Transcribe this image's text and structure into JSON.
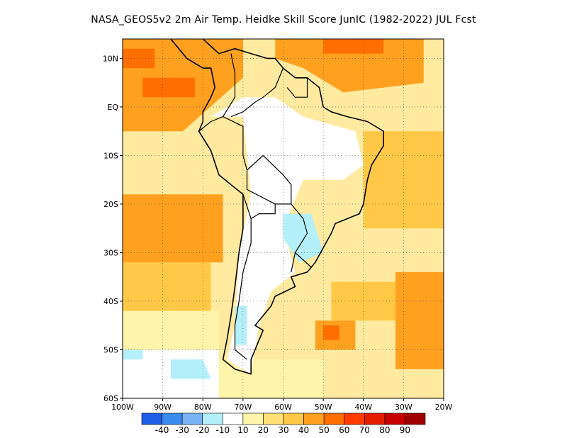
{
  "title": "NASA_GEOS5v2  2m Air Temp. Heidke Skill Score JunIC (1982-2022) JUL Fcst",
  "map": {
    "lon_range": [
      -100,
      -20
    ],
    "lat_range": [
      -60,
      14
    ],
    "grid": true,
    "background_color": "#ffeaa0",
    "lon_ticks": [
      {
        "value": -100,
        "label": "100W"
      },
      {
        "value": -90,
        "label": "90W"
      },
      {
        "value": -80,
        "label": "80W"
      },
      {
        "value": -70,
        "label": "70W"
      },
      {
        "value": -60,
        "label": "60W"
      },
      {
        "value": -50,
        "label": "50W"
      },
      {
        "value": -40,
        "label": "40W"
      },
      {
        "value": -30,
        "label": "30W"
      },
      {
        "value": -20,
        "label": "20W"
      }
    ],
    "lat_ticks": [
      {
        "value": 10,
        "label": "10N"
      },
      {
        "value": 0,
        "label": "EQ"
      },
      {
        "value": -10,
        "label": "10S"
      },
      {
        "value": -20,
        "label": "20S"
      },
      {
        "value": -30,
        "label": "30S"
      },
      {
        "value": -40,
        "label": "40S"
      },
      {
        "value": -50,
        "label": "50S"
      },
      {
        "value": -60,
        "label": "60S"
      }
    ]
  },
  "colorbar": {
    "colors": [
      "#1f5fe8",
      "#3c8cf0",
      "#78b4f5",
      "#b4f0fa",
      "#ffffff",
      "#fff5aa",
      "#ffe178",
      "#ffc846",
      "#ffa01e",
      "#ff6e00",
      "#ff3c00",
      "#e61e00",
      "#c80000",
      "#a00000"
    ],
    "labels": [
      "-40",
      "-30",
      "-20",
      "-10",
      "10",
      "20",
      "30",
      "40",
      "50",
      "60",
      "70",
      "80",
      "90"
    ]
  },
  "regions": [
    {
      "color": "#ffa01e",
      "points": [
        [
          -100,
          14
        ],
        [
          -70,
          14
        ],
        [
          -70,
          6
        ],
        [
          -85,
          -5
        ],
        [
          -100,
          -5
        ]
      ]
    },
    {
      "color": "#ffa01e",
      "points": [
        [
          -62,
          14
        ],
        [
          -25,
          14
        ],
        [
          -25,
          5
        ],
        [
          -45,
          3
        ],
        [
          -55,
          8
        ],
        [
          -62,
          10
        ]
      ]
    },
    {
      "color": "#ff6e00",
      "points": [
        [
          -100,
          12
        ],
        [
          -92,
          12
        ],
        [
          -92,
          8
        ],
        [
          -100,
          8
        ]
      ]
    },
    {
      "color": "#ff6e00",
      "points": [
        [
          -95,
          6
        ],
        [
          -82,
          6
        ],
        [
          -82,
          2
        ],
        [
          -95,
          2
        ]
      ]
    },
    {
      "color": "#ff6e00",
      "points": [
        [
          -50,
          14
        ],
        [
          -35,
          14
        ],
        [
          -35,
          11
        ],
        [
          -50,
          11
        ]
      ]
    },
    {
      "color": "#ffa01e",
      "points": [
        [
          -100,
          -18
        ],
        [
          -75,
          -18
        ],
        [
          -75,
          -32
        ],
        [
          -100,
          -32
        ]
      ]
    },
    {
      "color": "#ffc846",
      "points": [
        [
          -40,
          -5
        ],
        [
          -20,
          -5
        ],
        [
          -20,
          -25
        ],
        [
          -40,
          -25
        ]
      ]
    },
    {
      "color": "#ffc846",
      "points": [
        [
          -100,
          -32
        ],
        [
          -78,
          -32
        ],
        [
          -78,
          -42
        ],
        [
          -100,
          -42
        ]
      ]
    },
    {
      "color": "#ffa01e",
      "points": [
        [
          -52,
          -44
        ],
        [
          -42,
          -44
        ],
        [
          -42,
          -50
        ],
        [
          -52,
          -50
        ]
      ]
    },
    {
      "color": "#ff6e00",
      "points": [
        [
          -50,
          -45
        ],
        [
          -46,
          -45
        ],
        [
          -46,
          -48
        ],
        [
          -50,
          -48
        ]
      ]
    },
    {
      "color": "#ffa01e",
      "points": [
        [
          -32,
          -34
        ],
        [
          -20,
          -34
        ],
        [
          -20,
          -54
        ],
        [
          -32,
          -54
        ]
      ]
    },
    {
      "color": "#ffc846",
      "points": [
        [
          -48,
          -36
        ],
        [
          -32,
          -36
        ],
        [
          -32,
          -44
        ],
        [
          -48,
          -44
        ]
      ]
    },
    {
      "color": "#fff5aa",
      "points": [
        [
          -100,
          -42
        ],
        [
          -76,
          -42
        ],
        [
          -76,
          -50
        ],
        [
          -100,
          -50
        ]
      ]
    },
    {
      "color": "#ffffff",
      "points": [
        [
          -100,
          -50
        ],
        [
          -76,
          -50
        ],
        [
          -76,
          -60
        ],
        [
          -100,
          -60
        ]
      ]
    },
    {
      "color": "#fff5aa",
      "points": [
        [
          -76,
          -52
        ],
        [
          -50,
          -52
        ],
        [
          -50,
          -60
        ],
        [
          -76,
          -60
        ]
      ]
    },
    {
      "color": "#ffffff",
      "points": [
        [
          -78,
          -2
        ],
        [
          -70,
          -2
        ],
        [
          -68,
          -18
        ],
        [
          -71,
          -30
        ],
        [
          -72,
          -45
        ],
        [
          -74,
          -52
        ],
        [
          -68,
          -55
        ],
        [
          -66,
          -45
        ],
        [
          -63,
          -38
        ],
        [
          -57,
          -34
        ],
        [
          -60,
          -25
        ],
        [
          -55,
          -15
        ],
        [
          -45,
          -15
        ],
        [
          -40,
          -12
        ],
        [
          -42,
          -5
        ],
        [
          -55,
          -2
        ],
        [
          -62,
          2
        ],
        [
          -70,
          2
        ]
      ]
    },
    {
      "color": "#b4f0fa",
      "points": [
        [
          -60,
          -22
        ],
        [
          -53,
          -22
        ],
        [
          -50,
          -30
        ],
        [
          -56,
          -32
        ],
        [
          -60,
          -27
        ]
      ]
    },
    {
      "color": "#b4f0fa",
      "points": [
        [
          -88,
          -52
        ],
        [
          -80,
          -52
        ],
        [
          -78,
          -56
        ],
        [
          -88,
          -56
        ]
      ]
    },
    {
      "color": "#b4f0fa",
      "points": [
        [
          -72,
          -41
        ],
        [
          -69,
          -41
        ],
        [
          -69,
          -49
        ],
        [
          -72,
          -49
        ]
      ]
    },
    {
      "color": "#b4f0fa",
      "points": [
        [
          -100,
          -50
        ],
        [
          -95,
          -50
        ],
        [
          -95,
          -52
        ],
        [
          -100,
          -52
        ]
      ]
    }
  ],
  "coastline": [
    [
      [
        -88,
        14
      ],
      [
        -84,
        10
      ],
      [
        -80,
        8
      ],
      [
        -78,
        8
      ],
      [
        -77,
        4
      ],
      [
        -78,
        2
      ],
      [
        -80,
        -1
      ],
      [
        -80,
        -3
      ],
      [
        -81,
        -5
      ],
      [
        -78,
        -9
      ],
      [
        -76,
        -14
      ],
      [
        -70,
        -18
      ],
      [
        -70,
        -25
      ],
      [
        -71,
        -30
      ],
      [
        -72,
        -37
      ],
      [
        -73,
        -43
      ],
      [
        -74,
        -48
      ],
      [
        -75,
        -52
      ],
      [
        -72,
        -54
      ],
      [
        -68,
        -55
      ],
      [
        -68,
        -52
      ],
      [
        -65,
        -46
      ],
      [
        -67,
        -45
      ],
      [
        -63,
        -41
      ],
      [
        -62,
        -39
      ],
      [
        -57,
        -37
      ],
      [
        -58,
        -35
      ],
      [
        -54,
        -34
      ],
      [
        -52,
        -32
      ],
      [
        -48,
        -26
      ],
      [
        -47,
        -24
      ],
      [
        -41,
        -22
      ],
      [
        -40,
        -20
      ],
      [
        -39,
        -15
      ],
      [
        -38,
        -12
      ],
      [
        -35,
        -8
      ],
      [
        -35,
        -5
      ],
      [
        -39,
        -3
      ],
      [
        -44,
        -2
      ],
      [
        -48,
        -1
      ],
      [
        -50,
        0
      ],
      [
        -51,
        4
      ],
      [
        -54,
        6
      ],
      [
        -57,
        6
      ],
      [
        -60,
        8
      ],
      [
        -62,
        10
      ],
      [
        -64,
        10
      ],
      [
        -68,
        11
      ],
      [
        -72,
        12
      ],
      [
        -76,
        11
      ],
      [
        -80,
        14
      ]
    ]
  ],
  "borders": [
    [
      [
        -81,
        -5
      ],
      [
        -78,
        -3
      ],
      [
        -75,
        -2
      ],
      [
        -70,
        -4
      ],
      [
        -70,
        -10
      ],
      [
        -69,
        -13
      ],
      [
        -69,
        -17
      ],
      [
        -62,
        -20
      ],
      [
        -58,
        -20
      ],
      [
        -55,
        -23
      ],
      [
        -54,
        -26
      ],
      [
        -57,
        -30
      ],
      [
        -53,
        -33
      ]
    ],
    [
      [
        -70,
        -18
      ],
      [
        -68,
        -23
      ],
      [
        -68,
        -28
      ],
      [
        -70,
        -34
      ],
      [
        -71,
        -40
      ],
      [
        -72,
        -45
      ],
      [
        -72,
        -50
      ],
      [
        -69,
        -52
      ]
    ],
    [
      [
        -60,
        8
      ],
      [
        -62,
        4
      ],
      [
        -65,
        2
      ],
      [
        -67,
        1
      ],
      [
        -70,
        -1
      ],
      [
        -73,
        -2
      ]
    ],
    [
      [
        -75,
        -2
      ],
      [
        -72,
        2
      ],
      [
        -72,
        7
      ],
      [
        -73,
        11
      ]
    ],
    [
      [
        -69,
        -13
      ],
      [
        -65,
        -10
      ],
      [
        -60,
        -14
      ],
      [
        -58,
        -16
      ],
      [
        -58,
        -20
      ]
    ],
    [
      [
        -62,
        -20
      ],
      [
        -62,
        -22
      ],
      [
        -64,
        -22
      ],
      [
        -66,
        -22
      ],
      [
        -68,
        -23
      ]
    ],
    [
      [
        -57,
        -30
      ],
      [
        -58,
        -34
      ]
    ],
    [
      [
        -54,
        6
      ],
      [
        -54,
        2
      ],
      [
        -57,
        2
      ],
      [
        -59,
        4
      ]
    ]
  ]
}
